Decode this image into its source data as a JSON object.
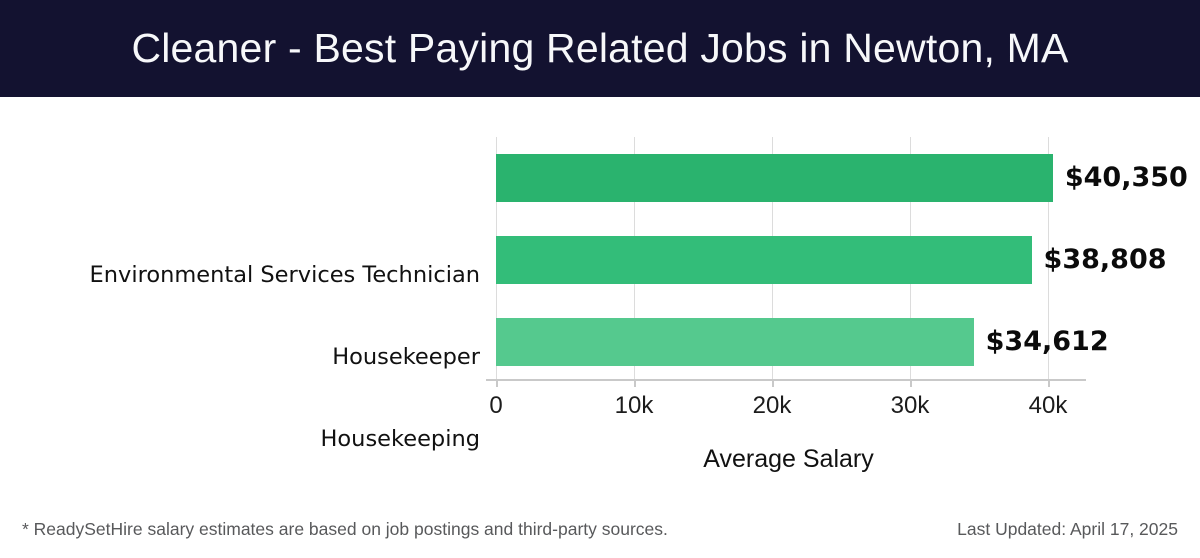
{
  "header": {
    "title": "Cleaner - Best Paying Related Jobs in Newton, MA",
    "bg_color": "#131230",
    "text_color": "#f7f8fa"
  },
  "chart_data": {
    "type": "bar",
    "orientation": "horizontal",
    "categories": [
      "Environmental Services Technician",
      "Housekeeper",
      "Housekeeping"
    ],
    "values": [
      40350,
      38808,
      34612
    ],
    "value_labels": [
      "$40,350",
      "$38,808",
      "$34,612"
    ],
    "bar_colors": [
      "#2ab36e",
      "#33bd79",
      "#55c98e"
    ],
    "xlabel": "Average Salary",
    "x_ticks": [
      "0",
      "10k",
      "20k",
      "30k",
      "40k"
    ],
    "x_tick_values": [
      0,
      10000,
      20000,
      30000,
      40000
    ],
    "xlim": [
      0,
      42400
    ],
    "grid": true,
    "gridline_color": "#dcdcdc",
    "axis_color": "#c9c9c9",
    "legend": "none"
  },
  "footer": {
    "note": "* ReadySetHire salary estimates are based on job postings and third-party sources.",
    "last_updated": "Last Updated: April 17, 2025"
  }
}
